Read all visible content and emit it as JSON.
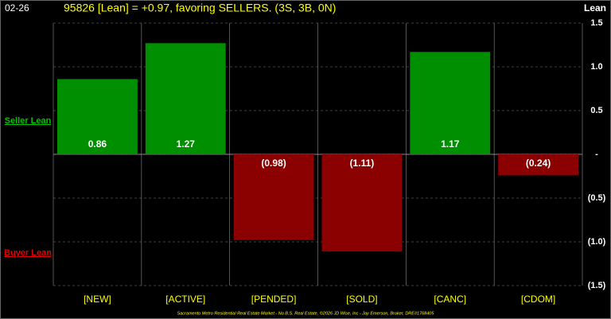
{
  "date_label": "02-26",
  "chart_data": {
    "type": "bar",
    "title": "95826 [Lean] = +0.97, favoring SELLERS. (3S, 3B, 0N)",
    "y_axis_label": "Lean",
    "annotations": [
      "Seller Lean",
      "Buyer Lean"
    ],
    "footer": "Sacramento Metro Residential Real Estate Market - No B.S. Real Estate, ©2026 JD Wise, Inc - Jay Emerson, Broker, DRE#1768405",
    "categories": [
      "[NEW]",
      "[ACTIVE]",
      "[PENDED]",
      "[SOLD]",
      "[CANC]",
      "[CDOM]"
    ],
    "values": [
      0.86,
      1.27,
      -0.98,
      -1.11,
      1.17,
      -0.24
    ],
    "value_labels": [
      "0.86",
      "1.27",
      "(0.98)",
      "(1.11)",
      "1.17",
      "(0.24)"
    ],
    "positive_color": "#008f00",
    "negative_color": "#8b0000",
    "ylim": [
      -1.5,
      1.5
    ],
    "yticks": [
      1.5,
      {
        "value": 1,
        "label": "1.0"
      },
      0.5,
      {
        "value": 0,
        "label": "-"
      },
      {
        "value": -0.5,
        "label": "(0.5)"
      },
      {
        "value": -1,
        "label": "(1.0)"
      },
      {
        "value": -1.5,
        "label": "(1.5)"
      }
    ],
    "grid": true
  }
}
